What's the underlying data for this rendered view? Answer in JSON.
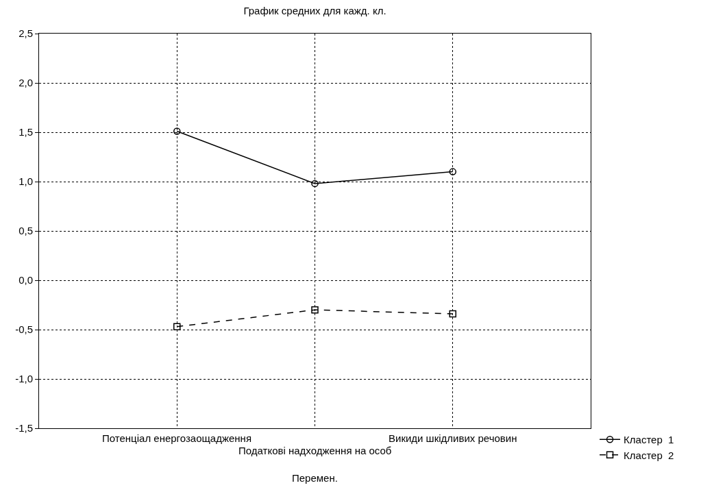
{
  "chart_data": {
    "type": "line",
    "title": "График средних для кажд. кл.",
    "xlabel": "Перемен.",
    "categories": [
      "Потенціал енергозаощадження",
      "Податкові надходження на особ",
      "Викиди шкідливих речовин"
    ],
    "series": [
      {
        "name": "Кластер  1",
        "color": "#000000",
        "values": [
          1.51,
          0.98,
          1.1
        ],
        "marker": "circle",
        "line_style": "solid"
      },
      {
        "name": "Кластер  2",
        "color": "#000000",
        "values": [
          -0.47,
          -0.3,
          -0.34
        ],
        "marker": "square",
        "line_style": "dashed"
      }
    ],
    "ylim": [
      -1.5,
      2.5
    ],
    "yticks": [
      {
        "value": -1.5,
        "label": "-1,5"
      },
      {
        "value": -1.0,
        "label": "-1,0"
      },
      {
        "value": -0.5,
        "label": "-0,5"
      },
      {
        "value": 0,
        "label": "0,0"
      },
      {
        "value": 0.5,
        "label": "0,5"
      },
      {
        "value": 1.0,
        "label": "1,0"
      },
      {
        "value": 1.5,
        "label": "1,5"
      },
      {
        "value": 2.0,
        "label": "2,0"
      },
      {
        "value": 2.5,
        "label": "2,5"
      }
    ],
    "grid": true,
    "legend": "bottom right"
  }
}
